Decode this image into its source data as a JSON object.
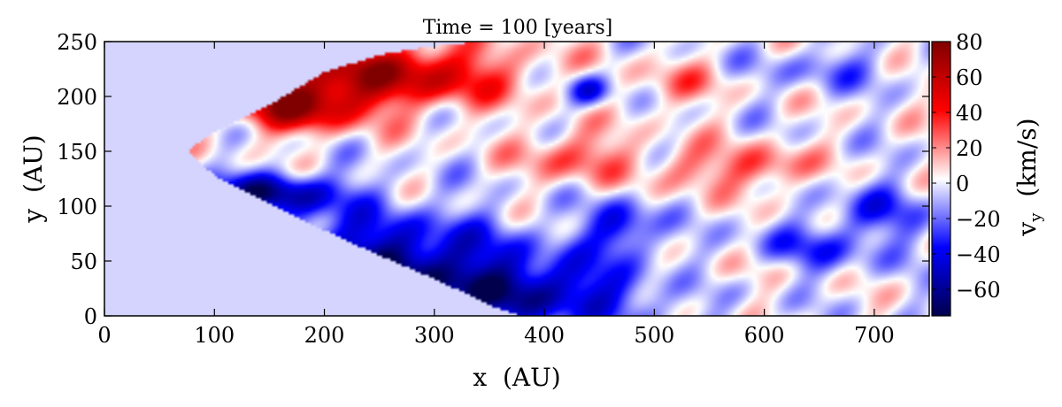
{
  "chart_data": {
    "type": "heatmap",
    "title": "Time = 100 [years]",
    "xlabel": "x  (AU)",
    "ylabel": "y  (AU)",
    "colorbar_label": "v_y  (km/s)",
    "colorbar_label_main": "v",
    "colorbar_label_sub": "y",
    "colorbar_label_units": "(km/s)",
    "colormap": "seismic",
    "xlim": [
      0,
      750
    ],
    "ylim": [
      0,
      250
    ],
    "clim": [
      -75,
      80
    ],
    "xticks": [
      {
        "value": 0,
        "label": "0"
      },
      {
        "value": 100,
        "label": "100"
      },
      {
        "value": 200,
        "label": "200"
      },
      {
        "value": 300,
        "label": "300"
      },
      {
        "value": 400,
        "label": "400"
      },
      {
        "value": 500,
        "label": "500"
      },
      {
        "value": 600,
        "label": "600"
      },
      {
        "value": 700,
        "label": "700"
      }
    ],
    "yticks": [
      {
        "value": 0,
        "label": "0"
      },
      {
        "value": 50,
        "label": "50"
      },
      {
        "value": 100,
        "label": "100"
      },
      {
        "value": 150,
        "label": "150"
      },
      {
        "value": 200,
        "label": "200"
      },
      {
        "value": 250,
        "label": "250"
      }
    ],
    "cticks": [
      {
        "value": -60,
        "label": "−60"
      },
      {
        "value": -40,
        "label": "−40"
      },
      {
        "value": -20,
        "label": "−20"
      },
      {
        "value": 0,
        "label": "0"
      },
      {
        "value": 20,
        "label": "20"
      },
      {
        "value": 40,
        "label": "40"
      },
      {
        "value": 60,
        "label": "60"
      },
      {
        "value": 80,
        "label": "80"
      }
    ],
    "flow_region": {
      "tip": [
        75,
        150
      ],
      "upper_boundary": [
        [
          75,
          150
        ],
        [
          100,
          168
        ],
        [
          150,
          192
        ],
        [
          200,
          222
        ],
        [
          250,
          238
        ],
        [
          300,
          246
        ],
        [
          340,
          250
        ]
      ],
      "lower_boundary": [
        [
          75,
          150
        ],
        [
          100,
          128
        ],
        [
          150,
          102
        ],
        [
          200,
          78
        ],
        [
          250,
          55
        ],
        [
          300,
          34
        ],
        [
          350,
          10
        ],
        [
          380,
          0
        ]
      ],
      "background_value": -4
    },
    "features": [
      {
        "x": 250,
        "y": 220,
        "sx": 120,
        "sy": 30,
        "value": 65
      },
      {
        "x": 175,
        "y": 190,
        "sx": 55,
        "sy": 22,
        "value": 60
      },
      {
        "x": 250,
        "y": 45,
        "sx": 130,
        "sy": 45,
        "value": -65
      },
      {
        "x": 150,
        "y": 112,
        "sx": 70,
        "sy": 18,
        "value": -55
      },
      {
        "x": 400,
        "y": 20,
        "sx": 110,
        "sy": 30,
        "value": -45
      },
      {
        "x": 470,
        "y": 80,
        "sx": 30,
        "sy": 25,
        "value": -42
      },
      {
        "x": 440,
        "y": 205,
        "sx": 20,
        "sy": 15,
        "value": -45
      },
      {
        "x": 430,
        "y": 145,
        "sx": 50,
        "sy": 25,
        "value": 30
      },
      {
        "x": 600,
        "y": 135,
        "sx": 40,
        "sy": 20,
        "value": 32
      },
      {
        "x": 520,
        "y": 210,
        "sx": 40,
        "sy": 20,
        "value": 20
      },
      {
        "x": 530,
        "y": 135,
        "sx": 30,
        "sy": 22,
        "value": 25
      },
      {
        "x": 640,
        "y": 60,
        "sx": 70,
        "sy": 22,
        "value": -25
      },
      {
        "x": 700,
        "y": 95,
        "sx": 40,
        "sy": 25,
        "value": -30
      },
      {
        "x": 660,
        "y": 225,
        "sx": 60,
        "sy": 20,
        "value": -18
      },
      {
        "x": 560,
        "y": 40,
        "sx": 60,
        "sy": 18,
        "value": 12
      }
    ]
  }
}
